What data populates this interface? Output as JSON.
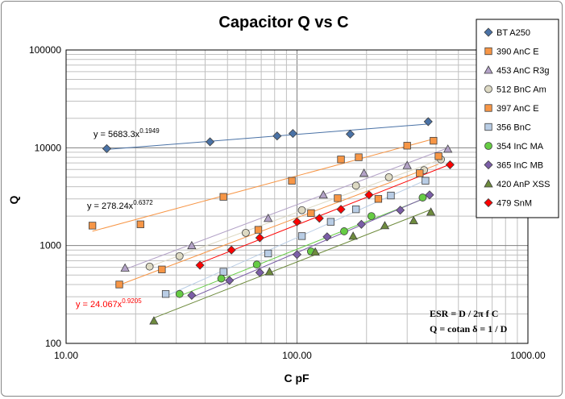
{
  "chart_data": {
    "type": "scatter",
    "title": "Capacitor Q vs C",
    "xlabel": "C pF",
    "ylabel": "Q",
    "x_scale": "log",
    "y_scale": "log",
    "xlim": [
      10,
      1000
    ],
    "ylim": [
      100,
      100000
    ],
    "x_ticks": [
      "10.00",
      "100.00",
      "1000.00"
    ],
    "y_ticks": [
      "100",
      "1000",
      "10000",
      "100000"
    ],
    "grid": true,
    "legend_position": "right",
    "series": [
      {
        "name": "BT A250",
        "marker": "diamond",
        "color": "#4A72A6",
        "x": [
          15,
          42,
          82,
          96,
          170,
          370
        ],
        "y": [
          9800,
          11500,
          13200,
          14000,
          13800,
          18500
        ]
      },
      {
        "name": "390 AnC E",
        "marker": "square",
        "color": "#F79646",
        "x": [
          13,
          21,
          48,
          95,
          155,
          185,
          300,
          390
        ],
        "y": [
          1600,
          1650,
          3150,
          4600,
          7600,
          8000,
          10500,
          11800
        ]
      },
      {
        "name": "453 AnC R3g",
        "marker": "triangle",
        "color": "#B3A2C7",
        "x": [
          18,
          35,
          75,
          130,
          195,
          300,
          450
        ],
        "y": [
          590,
          1000,
          1900,
          3300,
          5500,
          6600,
          9700
        ]
      },
      {
        "name": "512 BnC Am",
        "marker": "circle",
        "color": "#DDD9C3",
        "x": [
          23,
          31,
          60,
          105,
          180,
          250,
          355,
          420
        ],
        "y": [
          610,
          780,
          1350,
          2300,
          4100,
          5000,
          5900,
          7600
        ]
      },
      {
        "name": "397 AnC E",
        "marker": "square",
        "color": "#F79646",
        "x": [
          17,
          26,
          68,
          115,
          150,
          225,
          340,
          410
        ],
        "y": [
          400,
          570,
          1450,
          2150,
          3050,
          3000,
          5500,
          8200
        ]
      },
      {
        "name": "356 BnC",
        "marker": "square",
        "color": "#B9CDE5",
        "x": [
          27,
          48,
          75,
          105,
          140,
          180,
          255,
          360
        ],
        "y": [
          320,
          540,
          830,
          1250,
          1750,
          2350,
          3250,
          4600
        ]
      },
      {
        "name": "354 InC MA",
        "marker": "circle",
        "color": "#66CC44",
        "x": [
          31,
          47,
          67,
          115,
          160,
          210,
          350
        ],
        "y": [
          320,
          460,
          640,
          870,
          1400,
          2000,
          3100
        ]
      },
      {
        "name": "365 InC MB",
        "marker": "diamond",
        "color": "#7B5EA7",
        "x": [
          35,
          51,
          69,
          100,
          135,
          190,
          280,
          375
        ],
        "y": [
          310,
          440,
          530,
          810,
          1230,
          1650,
          2300,
          3300
        ]
      },
      {
        "name": "420 AnP XSS",
        "marker": "triangle",
        "color": "#6E8B3D",
        "x": [
          24,
          76,
          120,
          175,
          240,
          320,
          380
        ],
        "y": [
          170,
          540,
          860,
          1250,
          1600,
          1800,
          2200
        ]
      },
      {
        "name": "479 SnM",
        "marker": "diamond",
        "color": "#FF0000",
        "x": [
          38,
          52,
          69,
          100,
          125,
          155,
          205,
          460
        ],
        "y": [
          630,
          900,
          1200,
          1750,
          1900,
          2350,
          3300,
          6700
        ]
      }
    ],
    "trendlines": [
      {
        "series": "BT A250",
        "equation": "y = 5683.3x",
        "exponent": "0.1949",
        "color": "#2F5597"
      },
      {
        "series": "390 AnC E",
        "equation": "y = 278.24x",
        "exponent": "0.6372",
        "color": "#E8782A"
      },
      {
        "series": "479 SnM",
        "equation": "y = 24.067x",
        "exponent": "0.9205",
        "color": "#FF0000"
      }
    ],
    "annotations": [
      "ESR = D / 2π f C",
      "Q = cotan δ = 1 / D"
    ]
  }
}
